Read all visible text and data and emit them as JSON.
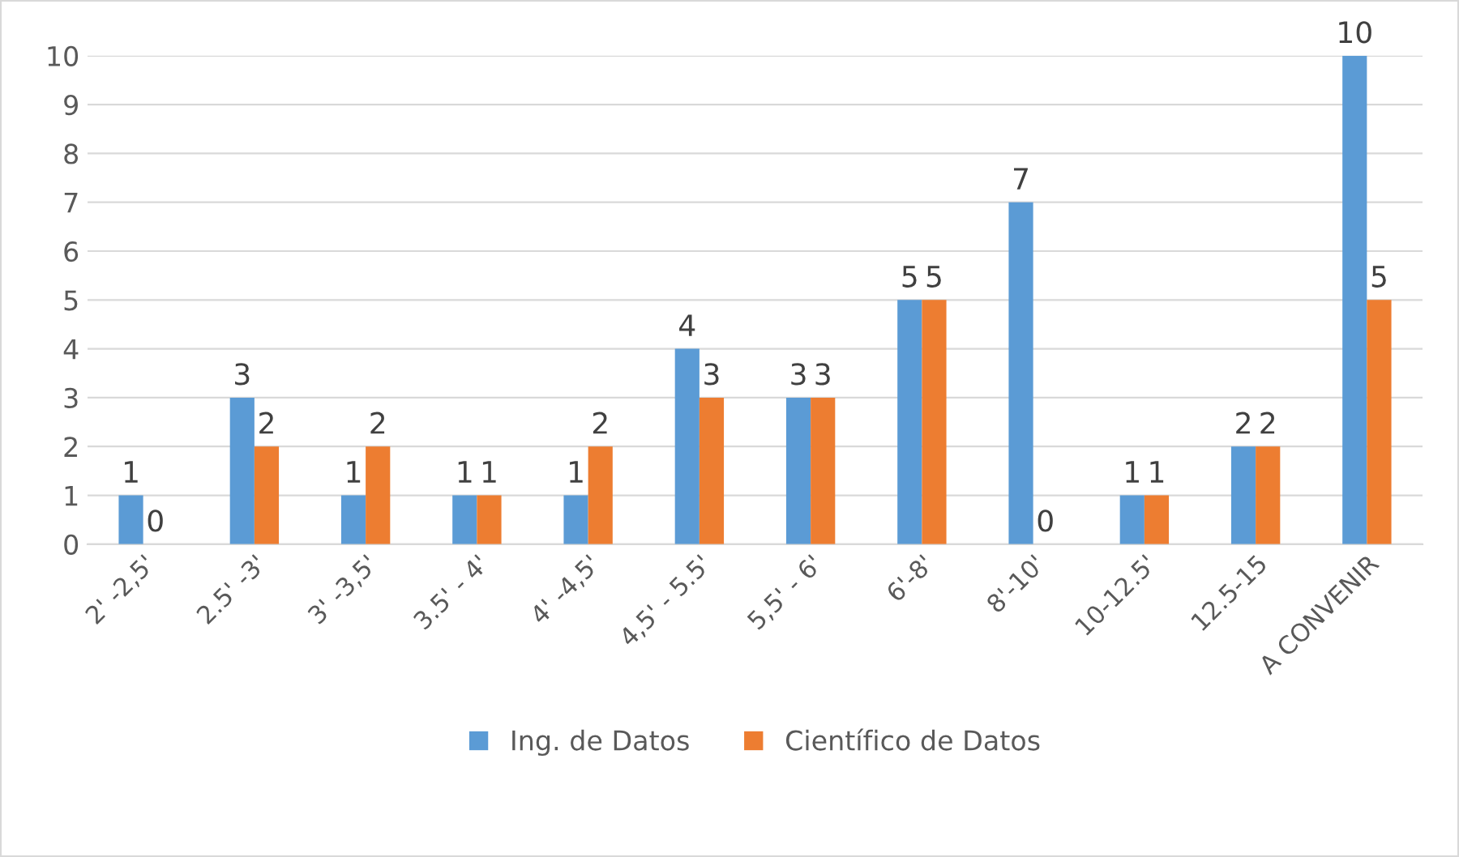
{
  "chart_data": {
    "type": "bar",
    "categories": [
      "2' -2,5'",
      "2.5' -3'",
      "3' -3,5'",
      "3.5' - 4'",
      "4' -4,5'",
      "4,5' - 5.5'",
      "5,5' - 6'",
      "6'-8'",
      "8'-10'",
      "10-12.5'",
      "12.5-15",
      "A CONVENIR"
    ],
    "series": [
      {
        "name": "Ing. de Datos",
        "color": "#5b9bd5",
        "values": [
          1,
          3,
          1,
          1,
          1,
          4,
          3,
          5,
          7,
          1,
          2,
          10
        ]
      },
      {
        "name": "Científico de Datos",
        "color": "#ed7d31",
        "values": [
          0,
          2,
          2,
          1,
          2,
          3,
          3,
          5,
          0,
          1,
          2,
          5
        ]
      }
    ],
    "ylim": [
      0,
      10
    ],
    "yticks": [
      0,
      1,
      2,
      3,
      4,
      5,
      6,
      7,
      8,
      9,
      10
    ],
    "grid": "y",
    "legend": "bottom",
    "data_labels": true
  }
}
